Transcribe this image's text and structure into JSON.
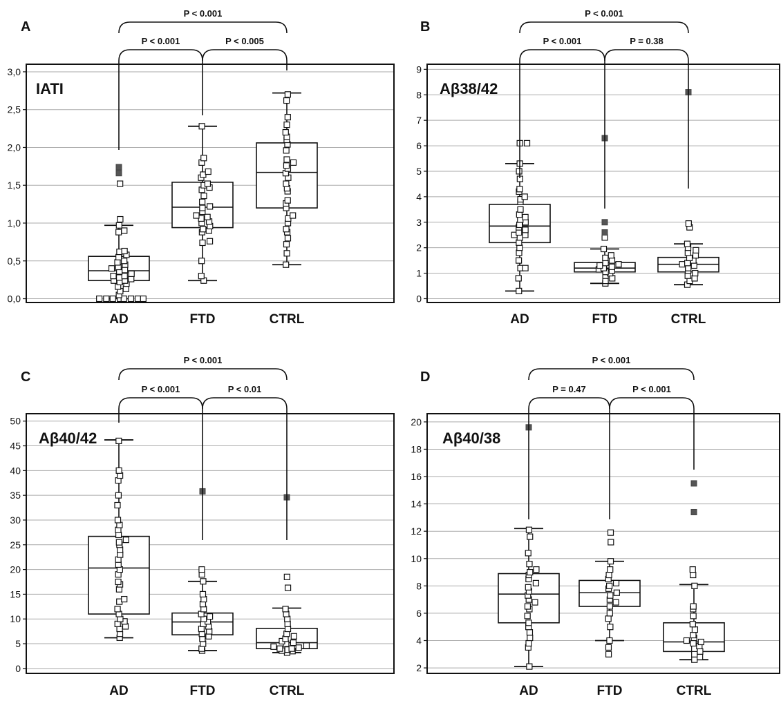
{
  "chart_data": [
    {
      "type": "box",
      "panel": "A",
      "label": "IATI",
      "categories": [
        "AD",
        "FTD",
        "CTRL"
      ],
      "yticks": [
        "0,0",
        "0,5",
        "1,0",
        "1,5",
        "2,0",
        "2,5",
        "3,0"
      ],
      "yrange": [
        -0.05,
        3.1
      ],
      "boxes": [
        {
          "category": "AD",
          "q1": 0.24,
          "median": 0.37,
          "q3": 0.56,
          "whisker_low": 0.0,
          "whisker_high": 0.97,
          "outliers": [
            1.66,
            1.74
          ],
          "points": [
            0,
            0,
            0,
            0,
            0,
            0,
            0,
            0,
            0.05,
            0.1,
            0.13,
            0.16,
            0.2,
            0.22,
            0.24,
            0.24,
            0.26,
            0.28,
            0.3,
            0.3,
            0.33,
            0.36,
            0.38,
            0.4,
            0.42,
            0.45,
            0.48,
            0.5,
            0.55,
            0.58,
            0.62,
            0.63,
            0.88,
            0.9,
            0.97,
            1.05,
            1.52
          ]
        },
        {
          "category": "FTD",
          "q1": 0.94,
          "median": 1.21,
          "q3": 1.54,
          "whisker_low": 0.24,
          "whisker_high": 2.28,
          "outliers": [],
          "points": [
            0.24,
            0.3,
            0.5,
            0.74,
            0.76,
            0.88,
            0.9,
            0.92,
            0.96,
            1.0,
            1.02,
            1.06,
            1.08,
            1.1,
            1.15,
            1.2,
            1.22,
            1.28,
            1.36,
            1.44,
            1.47,
            1.5,
            1.52,
            1.6,
            1.64,
            1.68,
            1.8,
            1.86,
            2.28
          ]
        },
        {
          "category": "CTRL",
          "q1": 1.2,
          "median": 1.67,
          "q3": 2.06,
          "whisker_low": 0.45,
          "whisker_high": 2.72,
          "outliers": [],
          "points": [
            0.45,
            0.6,
            0.72,
            0.8,
            0.88,
            0.92,
            1.0,
            1.06,
            1.1,
            1.2,
            1.26,
            1.3,
            1.42,
            1.46,
            1.52,
            1.6,
            1.66,
            1.72,
            1.76,
            1.8,
            1.84,
            1.96,
            2.04,
            2.1,
            2.14,
            2.2,
            2.3,
            2.4,
            2.62,
            2.7
          ]
        }
      ],
      "comparisons": [
        {
          "from": "AD",
          "to": "FTD",
          "label": "P < 0.001",
          "level": "inner"
        },
        {
          "from": "FTD",
          "to": "CTRL",
          "label": "P < 0.005",
          "level": "inner"
        },
        {
          "from": "AD",
          "to": "CTRL",
          "label": "P < 0.001",
          "level": "outer"
        }
      ]
    },
    {
      "type": "box",
      "panel": "B",
      "label": "Aβ38/42",
      "categories": [
        "AD",
        "FTD",
        "CTRL"
      ],
      "yticks": [
        "0",
        "1",
        "2",
        "3",
        "4",
        "5",
        "6",
        "7",
        "8",
        "9"
      ],
      "yrange": [
        -0.15,
        9.2
      ],
      "boxes": [
        {
          "category": "AD",
          "q1": 2.2,
          "median": 2.85,
          "q3": 3.7,
          "whisker_low": 0.3,
          "whisker_high": 5.3,
          "outliers": [],
          "points": [
            0.3,
            0.8,
            1.2,
            1.2,
            1.5,
            1.8,
            2.0,
            2.2,
            2.4,
            2.5,
            2.5,
            2.6,
            2.7,
            2.8,
            2.9,
            3.0,
            3.1,
            3.2,
            3.3,
            3.5,
            3.8,
            3.9,
            4.0,
            4.2,
            4.3,
            4.7,
            5.0,
            5.3,
            6.1,
            6.1
          ]
        },
        {
          "category": "FTD",
          "q1": 1.05,
          "median": 1.2,
          "q3": 1.42,
          "whisker_low": 0.6,
          "whisker_high": 1.95,
          "outliers": [
            2.6,
            3.0,
            6.3
          ],
          "points": [
            0.6,
            0.7,
            0.8,
            0.9,
            1.0,
            1.05,
            1.1,
            1.15,
            1.2,
            1.25,
            1.3,
            1.35,
            1.4,
            1.5,
            1.6,
            1.7,
            1.95,
            2.4
          ]
        },
        {
          "category": "CTRL",
          "q1": 1.05,
          "median": 1.35,
          "q3": 1.62,
          "whisker_low": 0.55,
          "whisker_high": 2.15,
          "outliers": [
            8.1
          ],
          "points": [
            0.55,
            0.7,
            0.8,
            0.9,
            1.0,
            1.1,
            1.2,
            1.3,
            1.35,
            1.4,
            1.5,
            1.6,
            1.7,
            1.8,
            1.9,
            2.0,
            2.15,
            2.8,
            2.95
          ]
        }
      ],
      "comparisons": [
        {
          "from": "AD",
          "to": "FTD",
          "label": "P < 0.001",
          "level": "inner"
        },
        {
          "from": "FTD",
          "to": "CTRL",
          "label": "P = 0.38",
          "level": "inner"
        },
        {
          "from": "AD",
          "to": "CTRL",
          "label": "P < 0.001",
          "level": "outer"
        }
      ]
    },
    {
      "type": "box",
      "panel": "C",
      "label": "Aβ40/42",
      "categories": [
        "AD",
        "FTD",
        "CTRL"
      ],
      "yticks": [
        "0",
        "5",
        "10",
        "15",
        "20",
        "25",
        "30",
        "35",
        "40",
        "45",
        "50"
      ],
      "yrange": [
        -1,
        51.5
      ],
      "boxes": [
        {
          "category": "AD",
          "q1": 11.0,
          "median": 20.3,
          "q3": 26.7,
          "whisker_low": 6.2,
          "whisker_high": 46.2,
          "outliers": [],
          "points": [
            6.2,
            7.0,
            8.0,
            8.5,
            9.0,
            9.5,
            10.0,
            11.0,
            12.0,
            13.5,
            14.0,
            16.0,
            17.0,
            17.5,
            19.0,
            20.0,
            21.0,
            22.0,
            23.0,
            24.0,
            25.0,
            25.5,
            26.0,
            27.0,
            28.0,
            29.0,
            30.0,
            33.0,
            35.0,
            38.0,
            39.0,
            40.0,
            46.0
          ]
        },
        {
          "category": "FTD",
          "q1": 6.8,
          "median": 9.4,
          "q3": 11.2,
          "whisker_low": 3.6,
          "whisker_high": 17.6,
          "outliers": [
            35.8
          ],
          "points": [
            3.6,
            4.0,
            5.0,
            6.0,
            6.5,
            7.0,
            7.5,
            8.0,
            8.5,
            9.0,
            9.5,
            10.0,
            10.5,
            11.0,
            12.0,
            13.0,
            14.0,
            15.0,
            17.6,
            19.0,
            20.0
          ]
        },
        {
          "category": "CTRL",
          "q1": 4.0,
          "median": 5.2,
          "q3": 8.1,
          "whisker_low": 3.2,
          "whisker_high": 12.2,
          "outliers": [
            34.6
          ],
          "points": [
            3.2,
            3.5,
            3.6,
            3.8,
            4.0,
            4.0,
            4.2,
            4.4,
            4.6,
            5.0,
            5.2,
            5.5,
            6.0,
            6.5,
            7.0,
            8.0,
            9.0,
            10.0,
            11.0,
            12.0,
            16.3,
            18.5
          ]
        }
      ],
      "comparisons": [
        {
          "from": "AD",
          "to": "FTD",
          "label": "P < 0.001",
          "level": "inner"
        },
        {
          "from": "FTD",
          "to": "CTRL",
          "label": "P < 0.01",
          "level": "inner"
        },
        {
          "from": "AD",
          "to": "CTRL",
          "label": "P < 0.001",
          "level": "outer"
        }
      ]
    },
    {
      "type": "box",
      "panel": "D",
      "label": "Aβ40/38",
      "categories": [
        "AD",
        "FTD",
        "CTRL"
      ],
      "yticks": [
        "2",
        "4",
        "6",
        "8",
        "10",
        "12",
        "14",
        "16",
        "18",
        "20"
      ],
      "yrange": [
        1.6,
        20.6
      ],
      "boxes": [
        {
          "category": "AD",
          "q1": 5.3,
          "median": 7.4,
          "q3": 8.9,
          "whisker_low": 2.1,
          "whisker_high": 12.2,
          "outliers": [
            19.6
          ],
          "points": [
            2.1,
            3.5,
            3.8,
            4.2,
            4.6,
            5.0,
            5.3,
            5.8,
            6.3,
            6.5,
            6.8,
            7.0,
            7.3,
            7.6,
            7.9,
            8.2,
            8.5,
            8.8,
            9.0,
            9.2,
            9.6,
            10.4,
            11.6,
            12.1
          ]
        },
        {
          "category": "FTD",
          "q1": 6.5,
          "median": 7.5,
          "q3": 8.4,
          "whisker_low": 4.0,
          "whisker_high": 9.8,
          "outliers": [],
          "points": [
            3.0,
            3.5,
            4.0,
            5.0,
            5.6,
            6.0,
            6.5,
            6.8,
            7.0,
            7.3,
            7.5,
            7.8,
            8.0,
            8.2,
            8.5,
            8.8,
            9.2,
            9.8,
            11.2,
            11.9
          ]
        },
        {
          "category": "CTRL",
          "q1": 3.2,
          "median": 3.9,
          "q3": 5.3,
          "whisker_low": 2.6,
          "whisker_high": 8.1,
          "outliers": [
            13.4,
            15.5
          ],
          "points": [
            2.6,
            2.8,
            3.0,
            3.2,
            3.4,
            3.6,
            3.8,
            3.9,
            4.0,
            4.2,
            4.4,
            4.8,
            5.2,
            5.8,
            6.3,
            6.5,
            8.0,
            8.8,
            9.2
          ]
        }
      ],
      "comparisons": [
        {
          "from": "AD",
          "to": "FTD",
          "label": "P = 0.47",
          "level": "inner"
        },
        {
          "from": "FTD",
          "to": "CTRL",
          "label": "P < 0.001",
          "level": "inner"
        },
        {
          "from": "AD",
          "to": "CTRL",
          "label": "P < 0.001",
          "level": "outer"
        }
      ]
    }
  ]
}
